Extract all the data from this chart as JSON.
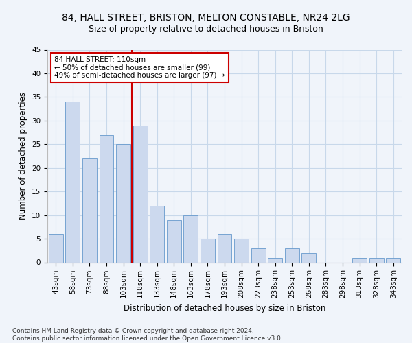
{
  "title1": "84, HALL STREET, BRISTON, MELTON CONSTABLE, NR24 2LG",
  "title2": "Size of property relative to detached houses in Briston",
  "xlabel": "Distribution of detached houses by size in Briston",
  "ylabel": "Number of detached properties",
  "categories": [
    "43sqm",
    "58sqm",
    "73sqm",
    "88sqm",
    "103sqm",
    "118sqm",
    "133sqm",
    "148sqm",
    "163sqm",
    "178sqm",
    "193sqm",
    "208sqm",
    "223sqm",
    "238sqm",
    "253sqm",
    "268sqm",
    "283sqm",
    "298sqm",
    "313sqm",
    "328sqm",
    "343sqm"
  ],
  "values": [
    6,
    34,
    22,
    27,
    25,
    29,
    12,
    9,
    10,
    5,
    6,
    5,
    3,
    1,
    3,
    2,
    0,
    0,
    1,
    1,
    1
  ],
  "bar_color": "#ccd9ee",
  "bar_edge_color": "#6699cc",
  "vline_color": "#cc0000",
  "annotation_box_color": "#cc0000",
  "annotation_line1": "84 HALL STREET: 110sqm",
  "annotation_line2": "← 50% of detached houses are smaller (99)",
  "annotation_line3": "49% of semi-detached houses are larger (97) →",
  "ylim": [
    0,
    45
  ],
  "yticks": [
    0,
    5,
    10,
    15,
    20,
    25,
    30,
    35,
    40,
    45
  ],
  "grid_color": "#c8d8ea",
  "background_color": "#f0f4fa",
  "footer": "Contains HM Land Registry data © Crown copyright and database right 2024.\nContains public sector information licensed under the Open Government Licence v3.0.",
  "title1_fontsize": 10,
  "title2_fontsize": 9,
  "xlabel_fontsize": 8.5,
  "ylabel_fontsize": 8.5,
  "tick_fontsize": 7.5,
  "footer_fontsize": 6.5,
  "vline_x_idx": 4.5
}
